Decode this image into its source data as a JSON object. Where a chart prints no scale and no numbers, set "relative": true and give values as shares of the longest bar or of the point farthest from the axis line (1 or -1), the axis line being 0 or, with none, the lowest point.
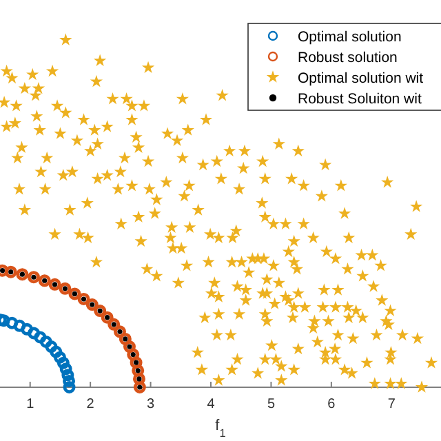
{
  "chart_data": {
    "type": "scatter",
    "xlabel": "f$_{1}$",
    "relative": true,
    "xlim": [
      0.5,
      7.82
    ],
    "xticks": [
      1,
      2,
      3,
      4,
      5,
      6,
      7
    ],
    "legend": "top right",
    "series": [
      {
        "name": "Optimal solution",
        "color": "#0072bd",
        "marker": "circle",
        "x": [
          1.65,
          1.644,
          1.625,
          1.594,
          1.551,
          1.495,
          1.429,
          1.351,
          1.264,
          1.167,
          1.061,
          0.947,
          0.825,
          0.698,
          0.564,
          0.51
        ],
        "values": [
          0,
          0.018,
          0.035,
          0.053,
          0.07,
          0.086,
          0.102,
          0.117,
          0.131,
          0.144,
          0.156,
          0.167,
          0.177,
          0.185,
          0.192,
          0.194
        ]
      },
      {
        "name": "Robust solution",
        "color": "#d95319",
        "marker": "circle",
        "x": [
          2.82,
          2.81,
          2.79,
          2.76,
          2.71,
          2.65,
          2.58,
          2.49,
          2.39,
          2.28,
          2.16,
          2.03,
          1.89,
          1.74,
          1.58,
          1.41,
          1.24,
          1.06,
          0.87,
          0.68,
          0.54
        ],
        "values": [
          0,
          0.024,
          0.048,
          0.071,
          0.094,
          0.117,
          0.139,
          0.16,
          0.181,
          0.201,
          0.22,
          0.238,
          0.254,
          0.269,
          0.284,
          0.296,
          0.307,
          0.317,
          0.325,
          0.332,
          0.336
        ]
      },
      {
        "name": "Optimal solution wit",
        "color": "#edb120",
        "marker": "star",
        "x": [
          1.59,
          2.16,
          2.96,
          0.61,
          1.04,
          1.37,
          2.1,
          0.7,
          0.91,
          1.14,
          0.57,
          1.09,
          2.37,
          2.6,
          3.53,
          4.19,
          0.77,
          1.45,
          2.69,
          2.89,
          1.89,
          1.11,
          1.59,
          2.69,
          3.92,
          0.61,
          0.75,
          2.28,
          1.16,
          1.5,
          2.07,
          2.76,
          3.28,
          3.44,
          3.62,
          1.78,
          2.12,
          0.86,
          2.8,
          4.31,
          4.56,
          5.13,
          5.45,
          0.79,
          1.28,
          2.0,
          2.57,
          2.96,
          3.53,
          4.1,
          4.86,
          5.9,
          1.18,
          1.55,
          1.7,
          2.28,
          2.5,
          3.87,
          4.54,
          0.82,
          1.25,
          2.12,
          2.69,
          2.98,
          3.26,
          3.64,
          4.17,
          4.9,
          5.34,
          5.54,
          6.16,
          6.93,
          0.91,
          1.66,
          1.95,
          2.46,
          3.1,
          3.56,
          3.79,
          4.47,
          4.85,
          5.84,
          6.22,
          7.41,
          2.8,
          3.07,
          4.9,
          1.41,
          1.82,
          1.96,
          2.51,
          2.84,
          3.35,
          3.33,
          3.37,
          3.51,
          3.65,
          3.99,
          4.13,
          4.36,
          4.42,
          5.04,
          5.24,
          5.54,
          5.38,
          5.7,
          6.29,
          7.32,
          2.1,
          2.94,
          3.1,
          3.46,
          3.6,
          3.96,
          4.35,
          4.51,
          4.69,
          4.88,
          5.04,
          5.29,
          5.38,
          5.43,
          4.63,
          4.78,
          5.92,
          6.07,
          6.27,
          6.5,
          6.68,
          6.82,
          6.52,
          4.06,
          4.44,
          4.93,
          5.13,
          4.01,
          4.13,
          4.58,
          4.58,
          4.86,
          4.93,
          5.24,
          5.45,
          5.88,
          6.11,
          6.7,
          6.84,
          5.06,
          5.29,
          5.38,
          5.56,
          5.86,
          6.07,
          6.27,
          6.41,
          6.98,
          3.9,
          4.13,
          4.47,
          4.9,
          4.93,
          5.36,
          5.72,
          5.95,
          6.29,
          6.52,
          6.91,
          6.95,
          4.33,
          4.1,
          5.7,
          5.77,
          6.11,
          6.36,
          6.75,
          7.18,
          7.43,
          5.01,
          5.45,
          6.06,
          3.78,
          6.99,
          4.44,
          4.9,
          5.08,
          5.9,
          5.9,
          6.07,
          6.98,
          7.66,
          3.85,
          4.35,
          4.78,
          5.17,
          5.38,
          6.22,
          6.34,
          6.59,
          4.13,
          5.17,
          6.72,
          6.98,
          7.16,
          7.5
        ],
        "values": [
          1.0,
          0.94,
          0.92,
          0.91,
          0.9,
          0.91,
          0.88,
          0.89,
          0.86,
          0.86,
          0.82,
          0.84,
          0.83,
          0.83,
          0.83,
          0.84,
          0.81,
          0.81,
          0.81,
          0.81,
          0.77,
          0.78,
          0.79,
          0.77,
          0.77,
          0.75,
          0.76,
          0.75,
          0.74,
          0.73,
          0.74,
          0.72,
          0.73,
          0.71,
          0.74,
          0.71,
          0.7,
          0.69,
          0.69,
          0.68,
          0.68,
          0.7,
          0.68,
          0.66,
          0.66,
          0.68,
          0.66,
          0.65,
          0.66,
          0.65,
          0.65,
          0.64,
          0.62,
          0.61,
          0.62,
          0.61,
          0.62,
          0.64,
          0.63,
          0.57,
          0.57,
          0.6,
          0.58,
          0.57,
          0.59,
          0.58,
          0.6,
          0.6,
          0.6,
          0.58,
          0.58,
          0.59,
          0.51,
          0.51,
          0.53,
          0.57,
          0.54,
          0.55,
          0.51,
          0.57,
          0.53,
          0.55,
          0.5,
          0.52,
          0.49,
          0.5,
          0.49,
          0.44,
          0.44,
          0.43,
          0.47,
          0.42,
          0.46,
          0.43,
          0.4,
          0.4,
          0.46,
          0.44,
          0.43,
          0.43,
          0.45,
          0.47,
          0.47,
          0.47,
          0.42,
          0.43,
          0.43,
          0.44,
          0.36,
          0.34,
          0.32,
          0.3,
          0.35,
          0.36,
          0.36,
          0.36,
          0.37,
          0.37,
          0.35,
          0.39,
          0.36,
          0.34,
          0.33,
          0.37,
          0.39,
          0.37,
          0.34,
          0.38,
          0.38,
          0.35,
          0.32,
          0.3,
          0.29,
          0.31,
          0.3,
          0.27,
          0.26,
          0.28,
          0.25,
          0.27,
          0.27,
          0.26,
          0.27,
          0.28,
          0.28,
          0.29,
          0.25,
          0.24,
          0.25,
          0.23,
          0.23,
          0.23,
          0.23,
          0.23,
          0.22,
          0.22,
          0.2,
          0.21,
          0.21,
          0.21,
          0.19,
          0.2,
          0.19,
          0.19,
          0.2,
          0.2,
          0.19,
          0.18,
          0.15,
          0.15,
          0.17,
          0.13,
          0.15,
          0.14,
          0.15,
          0.15,
          0.14,
          0.12,
          0.11,
          0.11,
          0.1,
          0.1,
          0.08,
          0.08,
          0.08,
          0.1,
          0.08,
          0.08,
          0.08,
          0.07,
          0.05,
          0.05,
          0.04,
          0.06,
          0.05,
          0.05,
          0.04,
          0.07,
          0.02,
          0.02,
          0.01,
          0.01,
          0.01,
          0
        ]
      },
      {
        "name": "Robust Soluiton wit",
        "color": "#000000",
        "marker": "circle",
        "x": [
          2.82,
          2.81,
          2.79,
          2.76,
          2.71,
          2.65,
          2.58,
          2.49,
          2.39,
          2.28,
          2.16,
          2.03,
          1.89,
          1.74,
          1.58,
          1.41,
          1.24,
          1.06,
          0.87,
          0.68,
          0.54
        ],
        "values": [
          0,
          0.024,
          0.048,
          0.071,
          0.094,
          0.117,
          0.139,
          0.16,
          0.181,
          0.201,
          0.22,
          0.238,
          0.254,
          0.269,
          0.284,
          0.296,
          0.307,
          0.317,
          0.325,
          0.332,
          0.336
        ]
      }
    ]
  }
}
